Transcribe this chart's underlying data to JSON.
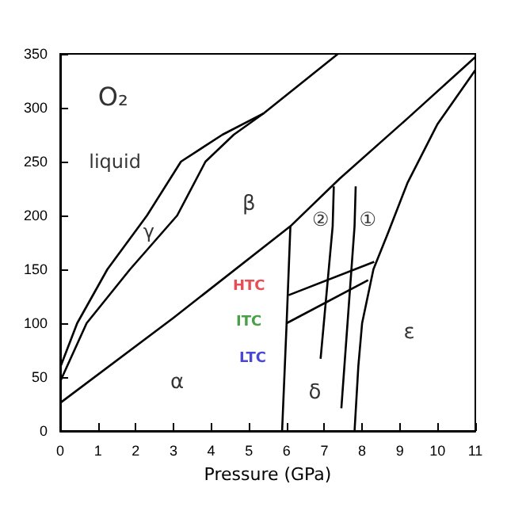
{
  "chart_data": {
    "type": "line",
    "xlabel": "Pressure (GPa)",
    "xlim": [
      0,
      11
    ],
    "xticks": [
      0,
      1,
      2,
      3,
      4,
      5,
      6,
      7,
      8,
      9,
      10,
      11
    ],
    "ylim": [
      0,
      350
    ],
    "yticks": [
      0,
      50,
      100,
      150,
      200,
      250,
      300,
      350
    ],
    "grid": false,
    "marker": "none",
    "line_style": "solid",
    "series": [
      {
        "color": "#000000",
        "x": [
          0,
          0.45,
          1.25,
          2.3,
          3.2,
          4.3,
          5.4,
          7.36
        ],
        "values": [
          59,
          100,
          150,
          200,
          250,
          275,
          295,
          350
        ]
      },
      {
        "color": "#000000",
        "x": [
          0,
          0.7,
          1.85,
          3.1,
          3.85,
          4.6,
          5.4
        ],
        "values": [
          46,
          100,
          150,
          200,
          250,
          275,
          295
        ]
      },
      {
        "color": "#000000",
        "x": [
          0,
          3,
          6.1,
          7.4,
          9.2,
          11
        ],
        "values": [
          26,
          105,
          190,
          234,
          290,
          347
        ]
      },
      {
        "color": "#000000",
        "x": [
          5.88,
          6.0,
          6.1
        ],
        "values": [
          0,
          100,
          190
        ]
      },
      {
        "color": "#000000",
        "x": [
          7.8,
          7.9,
          8.0,
          8.3,
          8.7,
          9.2,
          10,
          11
        ],
        "values": [
          0,
          60,
          100,
          150,
          185,
          230,
          285,
          335
        ]
      },
      {
        "color": "#000000",
        "x": [
          6.05,
          8.32
        ],
        "values": [
          126,
          157
        ]
      },
      {
        "color": "#000000",
        "x": [
          6.0,
          8.16
        ],
        "values": [
          100,
          140
        ]
      },
      {
        "color": "#000000",
        "x": [
          7.25,
          7.22,
          6.9
        ],
        "values": [
          227,
          190,
          67
        ]
      },
      {
        "color": "#000000",
        "x": [
          7.83,
          7.8,
          7.45
        ],
        "values": [
          227,
          190,
          21
        ]
      }
    ],
    "annotations": [
      "O₂",
      "liquid",
      "γ",
      "β",
      "α",
      "δ",
      "ε",
      "②",
      "①",
      "HTC",
      "ITC",
      "LTC"
    ]
  }
}
